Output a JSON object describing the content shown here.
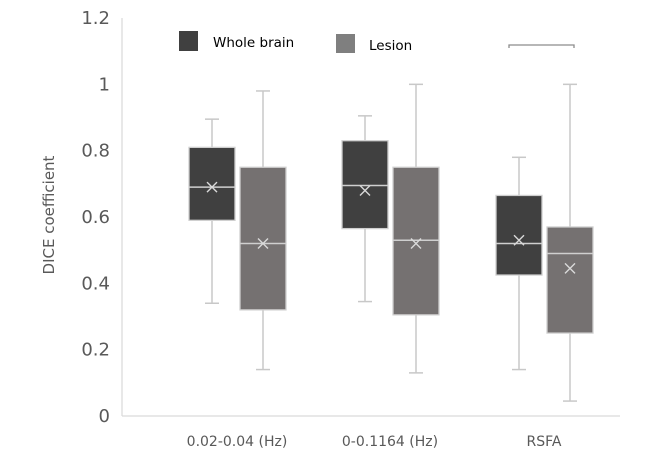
{
  "chart_data": {
    "type": "box",
    "title": "",
    "xlabel": "",
    "ylabel": "DICE coefficient",
    "ylim": [
      0,
      1.2
    ],
    "yticks": [
      "0",
      "0.2",
      "0.4",
      "0.6",
      "0.8",
      "1",
      "1.2"
    ],
    "ytick_values": [
      0,
      0.2,
      0.4,
      0.6,
      0.8,
      1.0,
      1.2
    ],
    "grid": false,
    "legend_position": "top-center",
    "categories": [
      "0.02-0.04 (Hz)",
      "0-0.1164 (Hz)",
      "RSFA"
    ],
    "series": [
      {
        "name": "Whole brain",
        "color": "#404040",
        "boxes": [
          {
            "min": 0.34,
            "q1": 0.59,
            "median": 0.69,
            "q3": 0.81,
            "max": 0.895,
            "mean": 0.69
          },
          {
            "min": 0.345,
            "q1": 0.565,
            "median": 0.695,
            "q3": 0.83,
            "max": 0.905,
            "mean": 0.68
          },
          {
            "min": 0.14,
            "q1": 0.425,
            "median": 0.52,
            "q3": 0.665,
            "max": 0.78,
            "mean": 0.53
          }
        ]
      },
      {
        "name": "Lesion",
        "color": "#757171",
        "boxes": [
          {
            "min": 0.14,
            "q1": 0.32,
            "median": 0.52,
            "q3": 0.75,
            "max": 0.98,
            "mean": 0.52
          },
          {
            "min": 0.13,
            "q1": 0.305,
            "median": 0.53,
            "q3": 0.75,
            "max": 1.0,
            "mean": 0.52
          },
          {
            "min": 0.045,
            "q1": 0.25,
            "median": 0.49,
            "q3": 0.57,
            "max": 1.0,
            "mean": 0.445
          }
        ]
      }
    ],
    "legend": [
      {
        "label": "Whole brain",
        "color": "#404040"
      },
      {
        "label": "Lesion",
        "color": "#7f7f7f"
      }
    ],
    "annotations": [
      {
        "type": "significance-bracket",
        "category": "RSFA",
        "text": ""
      }
    ]
  },
  "colors": {
    "axis": "#d9d9d9",
    "whisker": "#c8c8c8",
    "box_border": "#cfcfcf",
    "marker": "#d9d9d9",
    "bracket": "#8c8c8c"
  }
}
